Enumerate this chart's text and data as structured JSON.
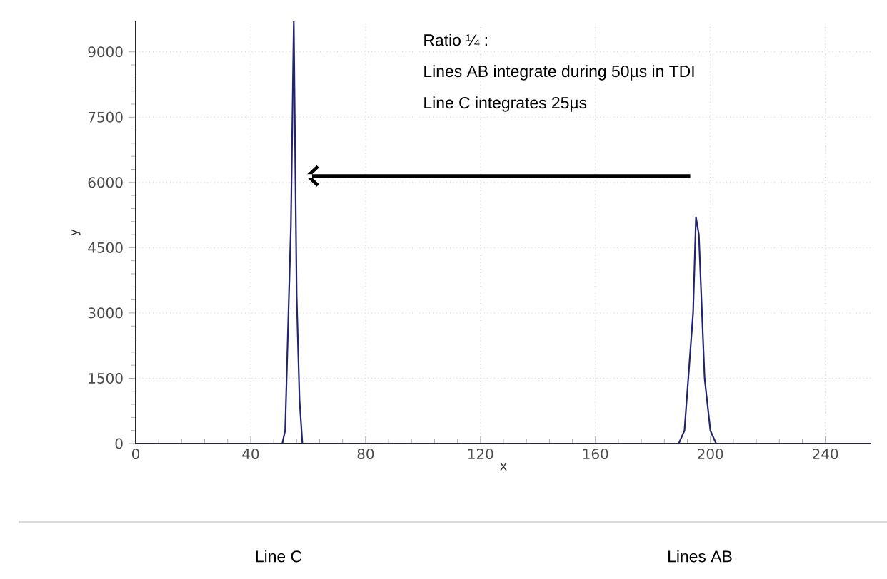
{
  "chart_data": {
    "type": "line",
    "xlabel": "x",
    "ylabel": "y",
    "x": [
      0,
      51,
      52,
      54,
      55,
      56,
      57,
      58,
      189,
      191,
      194,
      195,
      196,
      198,
      200,
      202,
      256
    ],
    "series": [
      {
        "color": "#22227a",
        "values": [
          0,
          0,
          300,
          5000,
          9700,
          3400,
          1000,
          0,
          0,
          300,
          3000,
          5200,
          4800,
          1500,
          300,
          0,
          0
        ]
      }
    ],
    "xlim": [
      0,
      256
    ],
    "ylim": [
      0,
      9700
    ],
    "xticks": [
      0,
      40,
      80,
      120,
      160,
      200,
      240
    ],
    "yticks": [
      0,
      1500,
      3000,
      4500,
      6000,
      7500,
      9000
    ],
    "grid": true,
    "annotations": [
      "Ratio ¼ :",
      "Lines AB integrate  during  50µs in TDI",
      "Line C integrates 25µs",
      "Line C",
      "Lines AB"
    ]
  }
}
